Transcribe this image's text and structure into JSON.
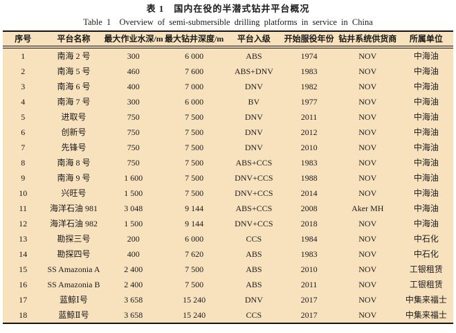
{
  "caption": {
    "chinese": "表 1　国内在役的半潜式钻井平台概况",
    "english": "Table 1  Overview of semi-submersible drilling platforms in service in China"
  },
  "table": {
    "headers": [
      "序号",
      "平台名称",
      "最大作业水深/m",
      "最大钻井深度/m",
      "平台入级",
      "开始服役年份",
      "钻井系统供货商",
      "所属单位"
    ],
    "rows": [
      [
        "1",
        "南海 2 号",
        "300",
        "6 000",
        "ABS",
        "1974",
        "NOV",
        "中海油"
      ],
      [
        "2",
        "南海 5 号",
        "460",
        "7 600",
        "ABS+DNV",
        "1983",
        "NOV",
        "中海油"
      ],
      [
        "3",
        "南海 6 号",
        "400",
        "7 000",
        "DNV",
        "1982",
        "NOV",
        "中海油"
      ],
      [
        "4",
        "南海 7 号",
        "300",
        "6 000",
        "BV",
        "1977",
        "NOV",
        "中海油"
      ],
      [
        "5",
        "进取号",
        "750",
        "7 500",
        "DNV",
        "2011",
        "NOV",
        "中海油"
      ],
      [
        "6",
        "创新号",
        "750",
        "7 500",
        "DNV",
        "2012",
        "NOV",
        "中海油"
      ],
      [
        "7",
        "先锋号",
        "750",
        "7 500",
        "DNV",
        "2010",
        "NOV",
        "中海油"
      ],
      [
        "8",
        "南海 8 号",
        "750",
        "7 500",
        "ABS+CCS",
        "1983",
        "NOV",
        "中海油"
      ],
      [
        "9",
        "南海 9 号",
        "1 600",
        "7 500",
        "DNV+CCS",
        "1988",
        "NOV",
        "中海油"
      ],
      [
        "10",
        "兴旺号",
        "1 500",
        "7 500",
        "DNV+CCS",
        "2014",
        "NOV",
        "中海油"
      ],
      [
        "11",
        "海洋石油 981",
        "3 048",
        "9 144",
        "ABS+CCS",
        "2008",
        "Aker MH",
        "中海油"
      ],
      [
        "12",
        "海洋石油 982",
        "1 500",
        "9 144",
        "DNV+CCS",
        "2018",
        "NOV",
        "中海油"
      ],
      [
        "13",
        "勘探三号",
        "200",
        "6 000",
        "CCS",
        "1984",
        "NOV",
        "中石化"
      ],
      [
        "14",
        "勘探四号",
        "400",
        "7 620",
        "ABS",
        "1983",
        "NOV",
        "中石化"
      ],
      [
        "15",
        "SS Amazonia A",
        "2 400",
        "7 500",
        "ABS",
        "2010",
        "NOV",
        "工银租赁"
      ],
      [
        "16",
        "SS Amazonia B",
        "2 400",
        "7 500",
        "ABS",
        "2011",
        "NOV",
        "工银租赁"
      ],
      [
        "17",
        "蓝鲸Ⅰ号",
        "3 658",
        "15 240",
        "DNV",
        "2017",
        "NOV",
        "中集来福士"
      ],
      [
        "18",
        "蓝鲸Ⅱ号",
        "3 658",
        "15 240",
        "CCS",
        "2017",
        "NOV",
        "中集来福士"
      ]
    ]
  },
  "colors": {
    "table_background": "#f8e2be",
    "rule": "#141414",
    "text": "#1a1a1a",
    "page_background": "#ffffff"
  }
}
